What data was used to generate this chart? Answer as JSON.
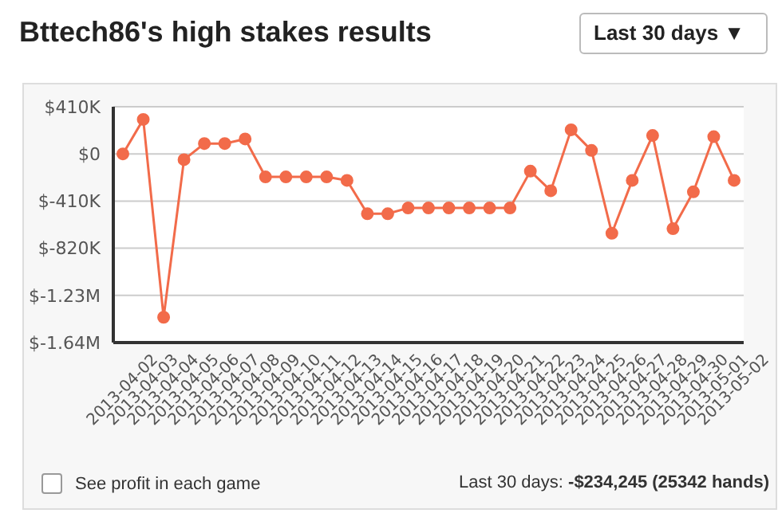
{
  "chart_data": {
    "type": "line",
    "title": "Bttech86's high stakes results",
    "categories": [
      "2013-04-02",
      "2013-04-03",
      "2013-04-04",
      "2013-04-05",
      "2013-04-06",
      "2013-04-07",
      "2013-04-08",
      "2013-04-09",
      "2013-04-10",
      "2013-04-11",
      "2013-04-12",
      "2013-04-13",
      "2013-04-14",
      "2013-04-15",
      "2013-04-16",
      "2013-04-17",
      "2013-04-18",
      "2013-04-19",
      "2013-04-20",
      "2013-04-21",
      "2013-04-22",
      "2013-04-23",
      "2013-04-24",
      "2013-04-25",
      "2013-04-26",
      "2013-04-27",
      "2013-04-28",
      "2013-04-29",
      "2013-04-30",
      "2013-05-01",
      "2013-05-02"
    ],
    "series": [
      {
        "color": "#f26b4a",
        "values": [
          0,
          300000,
          -1420000,
          -50000,
          90000,
          90000,
          130000,
          -200000,
          -200000,
          -200000,
          -200000,
          -230000,
          -520000,
          -520000,
          -470000,
          -470000,
          -470000,
          -470000,
          -470000,
          -470000,
          -150000,
          -320000,
          210000,
          30000,
          -690000,
          -230000,
          160000,
          -650000,
          -330000,
          150000,
          -230000
        ]
      }
    ],
    "ylim": [
      -1640000,
      410000
    ],
    "yticks": [
      {
        "value": 410000,
        "label": "$410K"
      },
      {
        "value": 0,
        "label": "$0"
      },
      {
        "value": -410000,
        "label": "$-410K"
      },
      {
        "value": -820000,
        "label": "$-820K"
      },
      {
        "value": -1230000,
        "label": "$-1.23M"
      },
      {
        "value": -1640000,
        "label": "$-1.64M"
      }
    ],
    "grid": "y",
    "marker": "circle",
    "legend": false,
    "annotations": [
      "Last 30 days ▼",
      "See profit in each game",
      "Last 30 days: -$234,245 (25342 hands)"
    ]
  }
}
